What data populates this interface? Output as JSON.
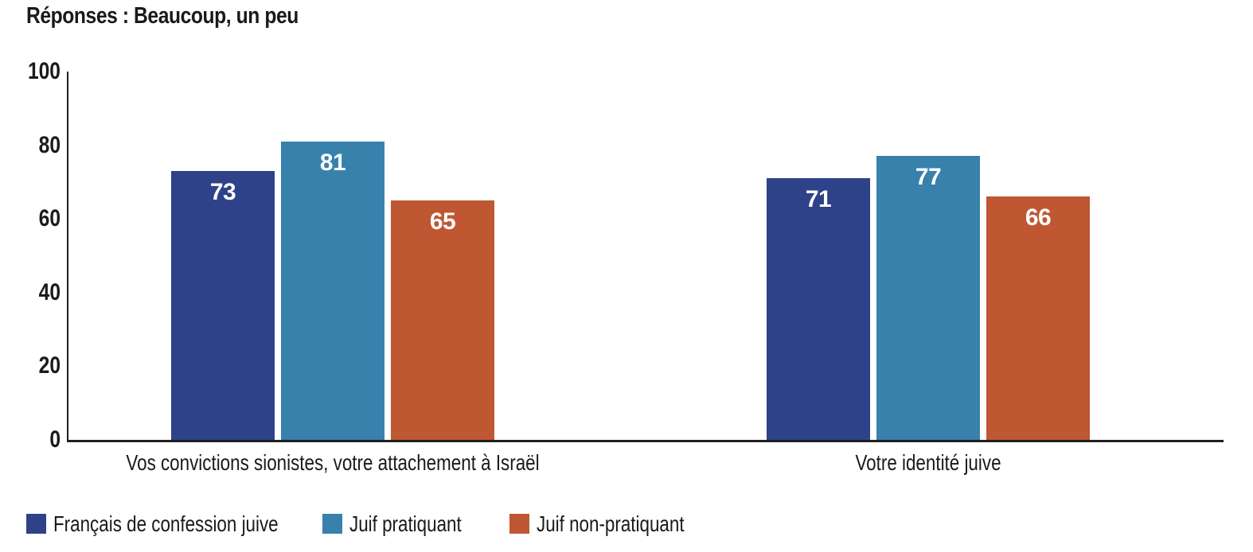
{
  "title": "Réponses : Beaucoup, un peu",
  "chart_data": {
    "type": "bar",
    "title": "Réponses : Beaucoup, un peu",
    "categories": [
      "Vos convictions sionistes, votre attachement à Israël",
      "Votre identité juive"
    ],
    "series": [
      {
        "name": "Français de confession juive",
        "color": "#2d4289",
        "values": [
          73,
          71
        ]
      },
      {
        "name": "Juif pratiquant",
        "color": "#3781ac",
        "values": [
          81,
          77
        ]
      },
      {
        "name": "Juif non-pratiquant",
        "color": "#bf5732",
        "values": [
          65,
          66
        ]
      }
    ],
    "ylim": [
      0,
      100
    ],
    "yticks": [
      0,
      20,
      40,
      60,
      80,
      100
    ],
    "grid": false,
    "legend_position": "bottom-left",
    "value_label_position": "inside-top",
    "value_label_color": "#ffffff",
    "axis_color": "#1f1f1f",
    "text_color": "#1a1a1a",
    "background": "#ffffff"
  }
}
